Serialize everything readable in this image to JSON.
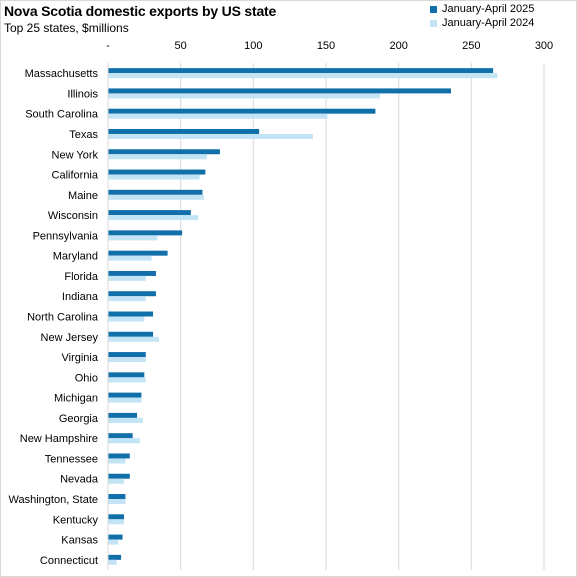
{
  "chart_data": {
    "type": "bar",
    "orientation": "horizontal",
    "title": "Nova Scotia domestic exports by US state",
    "subtitle": "Top 25 states, $millions",
    "categories": [
      "Massachusetts",
      "Illinois",
      "South Carolina",
      "Texas",
      "New York",
      "California",
      "Maine",
      "Wisconsin",
      "Pennsylvania",
      "Maryland",
      "Florida",
      "Indiana",
      "North Carolina",
      "New Jersey",
      "Virginia",
      "Ohio",
      "Michigan",
      "Georgia",
      "New Hampshire",
      "Tennessee",
      "Nevada",
      "Washington, State",
      "Kentucky",
      "Kansas",
      "Connecticut"
    ],
    "series": [
      {
        "name": "January-April 2025",
        "color": "#1170aa",
        "values": [
          265,
          236,
          184,
          104,
          77,
          67,
          65,
          57,
          51,
          41,
          33,
          33,
          31,
          31,
          26,
          25,
          23,
          20,
          17,
          15,
          15,
          12,
          11,
          10,
          9
        ]
      },
      {
        "name": "January-April 2024",
        "color": "#c3e4f4",
        "values": [
          268,
          187,
          151,
          141,
          68,
          63,
          66,
          62,
          34,
          30,
          26,
          26,
          25,
          35,
          26,
          26,
          23,
          24,
          22,
          12,
          11,
          12,
          11,
          7,
          6
        ]
      }
    ],
    "xlim": [
      0,
      300
    ],
    "xticks": [
      "-",
      "50",
      "100",
      "150",
      "200",
      "250",
      "300"
    ],
    "xaxis_position": "top",
    "grid": true,
    "legend_position": "top-right"
  }
}
